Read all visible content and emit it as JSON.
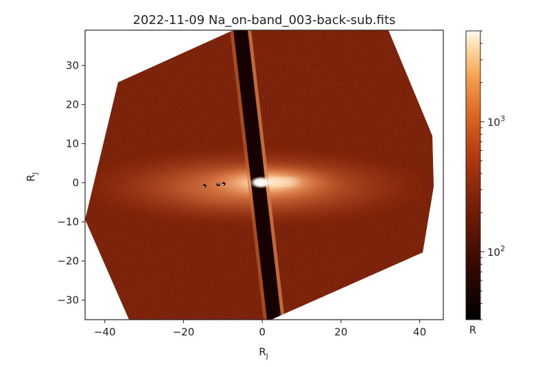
{
  "chart_data": {
    "type": "heatmap",
    "title": "2022-11-09 Na_on-band_003-back-sub.fits",
    "xlabel": "R",
    "xlabel_sub": "J",
    "ylabel": "R",
    "ylabel_sub": "J",
    "xlim": [
      -45,
      46
    ],
    "ylim": [
      -35,
      39
    ],
    "xticks": [
      -40,
      -20,
      0,
      20,
      40
    ],
    "xtick_labels": [
      "−40",
      "−20",
      "0",
      "20",
      "40"
    ],
    "yticks": [
      30,
      20,
      10,
      0,
      -10,
      -20,
      -30
    ],
    "ytick_labels": [
      "30",
      "20",
      "10",
      "0",
      "−10",
      "−20",
      "−30"
    ],
    "colorbar": {
      "scale": "log",
      "range": [
        30,
        5000
      ],
      "major_ticks": [
        {
          "value": 100,
          "base": "10",
          "exp": "2"
        },
        {
          "value": 1000,
          "base": "10",
          "exp": "3"
        }
      ],
      "label": "R",
      "colormap": "gist_heat"
    },
    "features": {
      "bright_source_center": [
        0,
        0
      ],
      "occulting_bar_angle_deg": 81
    }
  }
}
